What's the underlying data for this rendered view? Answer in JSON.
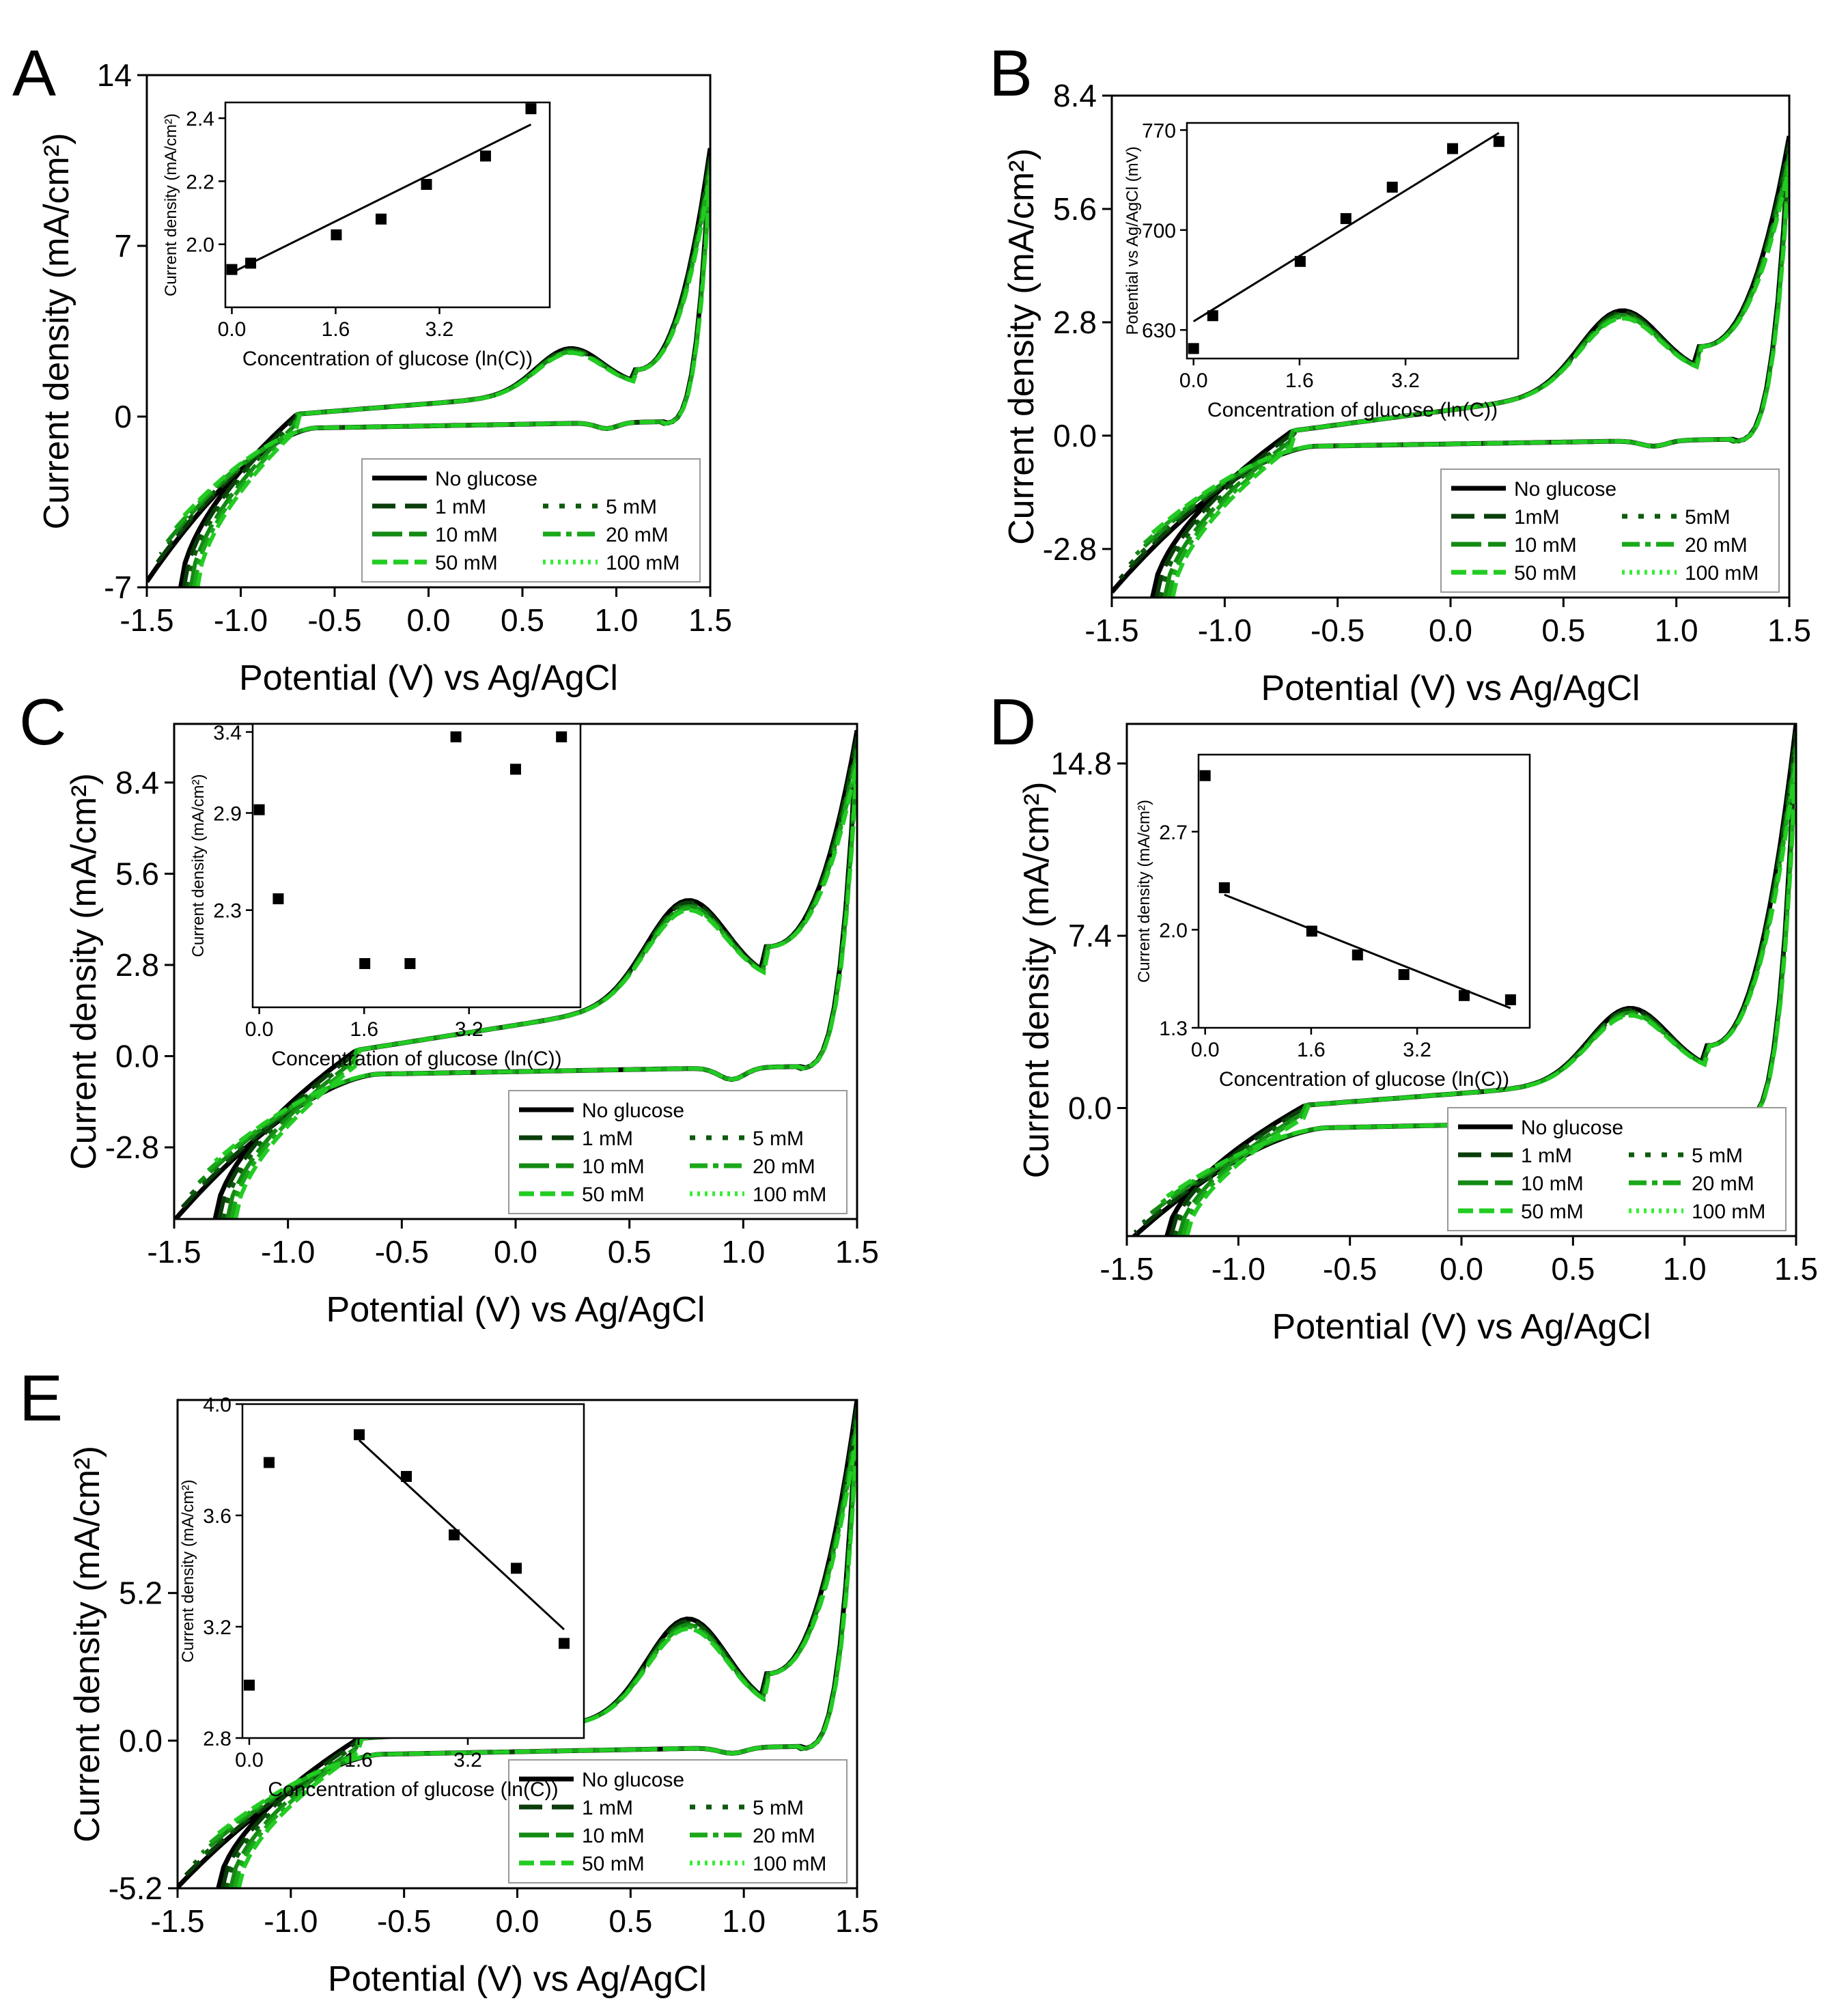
{
  "figure": {
    "panels": [
      "A",
      "B",
      "C",
      "D",
      "E"
    ]
  },
  "legend_labels": [
    "No glucose",
    "1 mM",
    "5 mM",
    "10 mM",
    "20 mM",
    "50 mM",
    "100 mM"
  ],
  "series_colors": {
    "No glucose": "#000000",
    "1 mM": "#0a3d0a",
    "5 mM": "#0e5a0e",
    "10 mM": "#138a13",
    "20 mM": "#1aa81a",
    "50 mM": "#22cc22",
    "100 mM": "#33ee33"
  },
  "chart_data": [
    {
      "panel": "A",
      "type": "line",
      "xlabel": "Potential (V) vs Ag/AgCl",
      "ylabel": "Current density (mA/cm²)",
      "xlim": [
        -1.5,
        1.5
      ],
      "ylim": [
        -7,
        14
      ],
      "xticks": [
        "-1.5",
        "-1.0",
        "-0.5",
        "0.0",
        "0.5",
        "1.0",
        "1.5"
      ],
      "yticks": [
        "-7",
        "0",
        "7",
        "14"
      ],
      "yticks_values": [
        -7,
        0,
        7,
        14
      ],
      "legend": [
        "No glucose",
        "1 mM",
        "5 mM",
        "10 mM",
        "20 mM",
        "50 mM",
        "100 mM"
      ],
      "cv": {
        "low": -7.0,
        "anodicMid": 0.5,
        "upperEnd": 11.0,
        "peakA": 1.8,
        "cathBase": -0.3,
        "cathPeak": -0.6,
        "cathPos": 0.95
      },
      "inset": {
        "type": "scatter",
        "xlabel": "Concentration of glucose (ln(C))",
        "ylabel": "Current density (mA/cm²)",
        "xlim": [
          -0.1,
          4.9
        ],
        "ylim": [
          1.8,
          2.45
        ],
        "xticks": [
          "0.0",
          "1.6",
          "3.2"
        ],
        "yticks": [
          "2.0",
          "2.2",
          "2.4"
        ],
        "x": [
          0.0,
          0.29,
          1.61,
          2.3,
          3.0,
          3.91,
          4.61
        ],
        "y": [
          1.92,
          1.94,
          2.03,
          2.08,
          2.19,
          2.28,
          2.43
        ],
        "fit": {
          "x": [
            0.0,
            4.61
          ],
          "y": [
            1.91,
            2.38
          ]
        }
      }
    },
    {
      "panel": "B",
      "type": "line",
      "xlabel": "Potential (V) vs Ag/AgCl",
      "ylabel": "Current density (mA/cm²)",
      "xlim": [
        -1.5,
        1.5
      ],
      "ylim": [
        -4.0,
        8.4
      ],
      "xticks": [
        "-1.5",
        "-1.0",
        "-0.5",
        "0.0",
        "0.5",
        "1.0",
        "1.5"
      ],
      "yticks": [
        "-2.8",
        "0.0",
        "2.8",
        "5.6",
        "8.4"
      ],
      "yticks_values": [
        -2.8,
        0.0,
        2.8,
        5.6,
        8.4
      ],
      "legend": [
        "No glucose",
        "1mM",
        "5mM",
        "10 mM",
        "20 mM",
        "50 mM",
        "100 mM"
      ],
      "cv": {
        "low": -4.0,
        "anodicMid": 0.6,
        "upperEnd": 7.4,
        "peakA": 1.9,
        "cathBase": -0.15,
        "cathPeak": -0.35,
        "cathPos": 0.9
      },
      "inset": {
        "type": "scatter",
        "xlabel": "Concentration of glucose (ln(C))",
        "ylabel": "Potential vs Ag/AgCl (mV)",
        "xlim": [
          -0.1,
          4.9
        ],
        "ylim": [
          610,
          775
        ],
        "xticks": [
          "0.0",
          "1.6",
          "3.2"
        ],
        "yticks": [
          "630",
          "700",
          "770"
        ],
        "x": [
          0.0,
          0.29,
          1.61,
          2.3,
          3.0,
          3.91,
          4.61
        ],
        "y": [
          617,
          640,
          678,
          708,
          730,
          757,
          762
        ],
        "fit": {
          "x": [
            0.0,
            4.61
          ],
          "y": [
            636,
            768
          ]
        }
      }
    },
    {
      "panel": "C",
      "type": "line",
      "xlabel": "Potential (V) vs Ag/AgCl",
      "ylabel": "Current density (mA/cm²)",
      "xlim": [
        -1.5,
        1.5
      ],
      "ylim": [
        -5.0,
        10.2
      ],
      "xticks": [
        "-1.5",
        "-1.0",
        "-0.5",
        "0.0",
        "0.5",
        "1.0",
        "1.5"
      ],
      "yticks": [
        "-2.8",
        "0.0",
        "2.8",
        "5.6",
        "8.4"
      ],
      "yticks_values": [
        -2.8,
        0.0,
        2.8,
        5.6,
        8.4
      ],
      "legend": [
        "No glucose",
        "1 mM",
        "5 mM",
        "10 mM",
        "20 mM",
        "50 mM",
        "100 mM"
      ],
      "cv": {
        "low": -5.0,
        "anodicMid": 0.9,
        "upperEnd": 10.0,
        "peakA": 3.0,
        "cathBase": -0.4,
        "cathPeak": -0.9,
        "cathPos": 0.95
      },
      "inset": {
        "type": "scatter",
        "xlabel": "Concentration of glucose (ln(C))",
        "ylabel": "Current density (mA/cm²)",
        "xlim": [
          -0.1,
          4.9
        ],
        "ylim": [
          1.7,
          3.45
        ],
        "xticks": [
          "0.0",
          "1.6",
          "3.2"
        ],
        "yticks": [
          "2.3",
          "2.9",
          "3.4"
        ],
        "x": [
          0.0,
          0.29,
          1.61,
          2.3,
          3.0,
          3.91,
          4.61
        ],
        "y": [
          2.92,
          2.37,
          1.97,
          1.97,
          3.37,
          3.17,
          3.37
        ]
      }
    },
    {
      "panel": "D",
      "type": "line",
      "xlabel": "Potential (V) vs Ag/AgCl",
      "ylabel": "Current density (mA/cm²)",
      "xlim": [
        -1.5,
        1.5
      ],
      "ylim": [
        -5.5,
        16.5
      ],
      "xticks": [
        "-1.5",
        "-1.0",
        "-0.5",
        "0.0",
        "0.5",
        "1.0",
        "1.5"
      ],
      "yticks": [
        "0.0",
        "7.4",
        "14.8"
      ],
      "yticks_values": [
        0.0,
        7.4,
        14.8
      ],
      "legend": [
        "No glucose",
        "1 mM",
        "5 mM",
        "10 mM",
        "20 mM",
        "50 mM",
        "100 mM"
      ],
      "cv": {
        "low": -5.5,
        "anodicMid": 0.6,
        "upperEnd": 16.5,
        "peakA": 3.1,
        "cathBase": -0.6,
        "cathPeak": -1.0,
        "cathPos": 0.95
      },
      "inset": {
        "type": "scatter",
        "xlabel": "Concentration of glucose (ln(C))",
        "ylabel": "Current density (mA/cm²)",
        "xlim": [
          -0.1,
          4.9
        ],
        "ylim": [
          1.3,
          3.25
        ],
        "xticks": [
          "0.0",
          "1.6",
          "3.2"
        ],
        "yticks": [
          "1.3",
          "2.0",
          "2.7"
        ],
        "x": [
          0.0,
          0.29,
          1.61,
          2.3,
          3.0,
          3.91,
          4.61
        ],
        "y": [
          3.1,
          2.3,
          1.99,
          1.82,
          1.68,
          1.53,
          1.5
        ],
        "fit": {
          "x": [
            0.29,
            4.61
          ],
          "y": [
            2.25,
            1.44
          ]
        }
      }
    },
    {
      "panel": "E",
      "type": "line",
      "xlabel": "Potential (V) vs Ag/AgCl",
      "ylabel": "Current density (mA/cm²)",
      "xlim": [
        -1.5,
        1.5
      ],
      "ylim": [
        -5.2,
        12.0
      ],
      "xticks": [
        "-1.5",
        "-1.0",
        "-0.5",
        "0.0",
        "0.5",
        "1.0",
        "1.5"
      ],
      "yticks": [
        "-5.2",
        "0.0",
        "5.2"
      ],
      "yticks_values": [
        -5.2,
        0.0,
        5.2
      ],
      "legend": [
        "No glucose",
        "1 mM",
        "5 mM",
        "10 mM",
        "20 mM",
        "50 mM",
        "100 mM"
      ],
      "cv": {
        "low": -5.2,
        "anodicMid": 0.4,
        "upperEnd": 12.0,
        "peakA": 3.5,
        "cathBase": -0.3,
        "cathPeak": -0.5,
        "cathPos": 0.95
      },
      "inset": {
        "type": "scatter",
        "xlabel": "Concentration of glucose (ln(C))",
        "ylabel": "Current density (mA/cm²)",
        "xlim": [
          -0.1,
          4.9
        ],
        "ylim": [
          2.8,
          4.0
        ],
        "xticks": [
          "0.0",
          "1.6",
          "3.2"
        ],
        "yticks": [
          "2.8",
          "3.2",
          "3.6",
          "4.0"
        ],
        "x": [
          0.0,
          0.29,
          1.61,
          2.3,
          3.0,
          3.91,
          4.61
        ],
        "y": [
          2.99,
          3.79,
          3.89,
          3.74,
          3.53,
          3.41,
          3.14
        ],
        "fit": {
          "x": [
            1.61,
            4.61
          ],
          "y": [
            3.87,
            3.19
          ]
        }
      }
    }
  ]
}
